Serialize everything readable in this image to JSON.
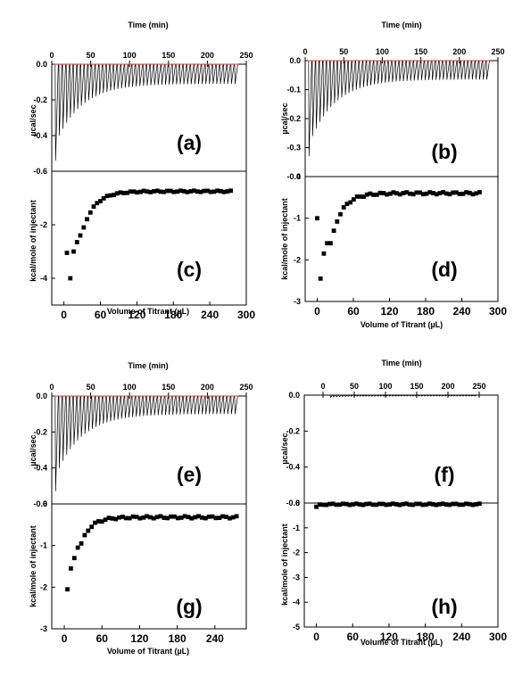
{
  "chart_data": [
    {
      "type": "line",
      "panel_label": "(a)",
      "top_xlabel": "Time (min)",
      "ylabel": "µcal/sec",
      "xlim": [
        0,
        250
      ],
      "ylim": [
        -0.6,
        0.0
      ],
      "top_xticks": [
        "0",
        "50",
        "100",
        "150",
        "200",
        "250"
      ],
      "yticks": [
        "0.0",
        "-0.2",
        "-0.4",
        "-0.6"
      ],
      "peaks": {
        "time_end": 240,
        "count": 50,
        "first_peak": -0.54,
        "last_peak": -0.11,
        "second_peak": -0.4
      }
    },
    {
      "type": "scatter",
      "panel_label": "(c)",
      "xlabel": "Volume of Titrant (µL)",
      "ylabel": "kcal/mole of injectant",
      "xlim": [
        -20,
        300
      ],
      "ylim": [
        -5,
        0
      ],
      "xticks": [
        "0",
        "60",
        "120",
        "180",
        "240",
        "300"
      ],
      "yticks": [
        "-2",
        "-4"
      ],
      "points": {
        "x_start": 5,
        "x_step": 5.5,
        "count": 50,
        "first_points": [
          -3.05,
          -4.0,
          -3.0,
          -2.65,
          -2.4,
          -2.1
        ],
        "plateau": -0.75,
        "tau": 20
      }
    },
    {
      "type": "line",
      "panel_label": "(b)",
      "top_xlabel": "Time (min)",
      "ylabel": "µcal/sec",
      "xlim": [
        0,
        250
      ],
      "ylim": [
        -0.4,
        0.0
      ],
      "top_xticks": [
        "0",
        "50",
        "100",
        "150",
        "200",
        "250"
      ],
      "yticks": [
        "0.0",
        "-0.1",
        "-0.2",
        "-0.3",
        "-0.4"
      ],
      "peaks": {
        "time_end": 240,
        "count": 50,
        "first_peak": -0.33,
        "last_peak": -0.065,
        "second_peak": -0.26
      }
    },
    {
      "type": "scatter",
      "panel_label": "(d)",
      "xlabel": "Volume of Titrant (µL)",
      "ylabel": "kcal/mole of injectant",
      "xlim": [
        -20,
        300
      ],
      "ylim": [
        -3,
        0
      ],
      "xticks": [
        "0",
        "60",
        "120",
        "180",
        "240",
        "300"
      ],
      "yticks": [
        "0",
        "-1",
        "-2",
        "-3"
      ],
      "points": {
        "x_start": 0,
        "x_step": 5.5,
        "count": 50,
        "first_points": [
          -1.0,
          -2.45,
          -1.85,
          -1.6,
          -1.6,
          -1.3
        ],
        "plateau": -0.4,
        "tau": 18
      }
    },
    {
      "type": "line",
      "panel_label": "(e)",
      "top_xlabel": "Time (min)",
      "ylabel": "µcal/sec",
      "xlim": [
        0,
        250
      ],
      "ylim": [
        -0.6,
        0.0
      ],
      "top_xticks": [
        "0",
        "50",
        "100",
        "150",
        "200",
        "250"
      ],
      "yticks": [
        "0.0",
        "-0.2",
        "-0.4",
        "-0.6"
      ],
      "peaks": {
        "time_end": 240,
        "count": 50,
        "first_peak": -0.53,
        "last_peak": -0.1,
        "second_peak": -0.4
      }
    },
    {
      "type": "scatter",
      "panel_label": "(g)",
      "xlabel": "Volume of Titrant (µL)",
      "ylabel": "kcal/mole of injectant",
      "xlim": [
        -20,
        290
      ],
      "ylim": [
        -3,
        0
      ],
      "xticks": [
        "0",
        "60",
        "120",
        "180",
        "240"
      ],
      "yticks": [
        "0",
        "-1",
        "-2",
        "-3"
      ],
      "points": {
        "x_start": 5,
        "x_step": 5.5,
        "count": 50,
        "first_points": [
          -2.05,
          -1.55,
          -1.3,
          -1.05,
          -0.95,
          -0.75
        ],
        "plateau": -0.32,
        "tau": 16
      }
    },
    {
      "type": "line",
      "panel_label": "(f)",
      "top_xlabel": "Time (min)",
      "ylabel": "µcal/sec",
      "xlim": [
        -30,
        280
      ],
      "ylim": [
        -0.6,
        0.0
      ],
      "top_xticks": [
        "0",
        "50",
        "100",
        "150",
        "200",
        "250"
      ],
      "yticks": [
        "0.0",
        "-0.2",
        "-0.4",
        "-0.6"
      ],
      "peaks": {
        "time_end": 240,
        "count": 50,
        "first_peak": -0.012,
        "last_peak": -0.005,
        "second_peak": -0.01
      }
    },
    {
      "type": "scatter",
      "panel_label": "(h)",
      "xlabel": "Volume of Titrant (µL)",
      "ylabel": "kcal/mole of injectant",
      "xlim": [
        -20,
        300
      ],
      "ylim": [
        -5,
        0
      ],
      "xticks": [
        "0",
        "60",
        "120",
        "180",
        "240",
        "300"
      ],
      "yticks": [
        "0",
        "-1",
        "-2",
        "-3",
        "-4",
        "-5"
      ],
      "points": {
        "x_start": 0,
        "x_step": 5.5,
        "count": 50,
        "first_points": [
          -0.15
        ],
        "plateau": -0.05,
        "tau": 5
      }
    }
  ]
}
